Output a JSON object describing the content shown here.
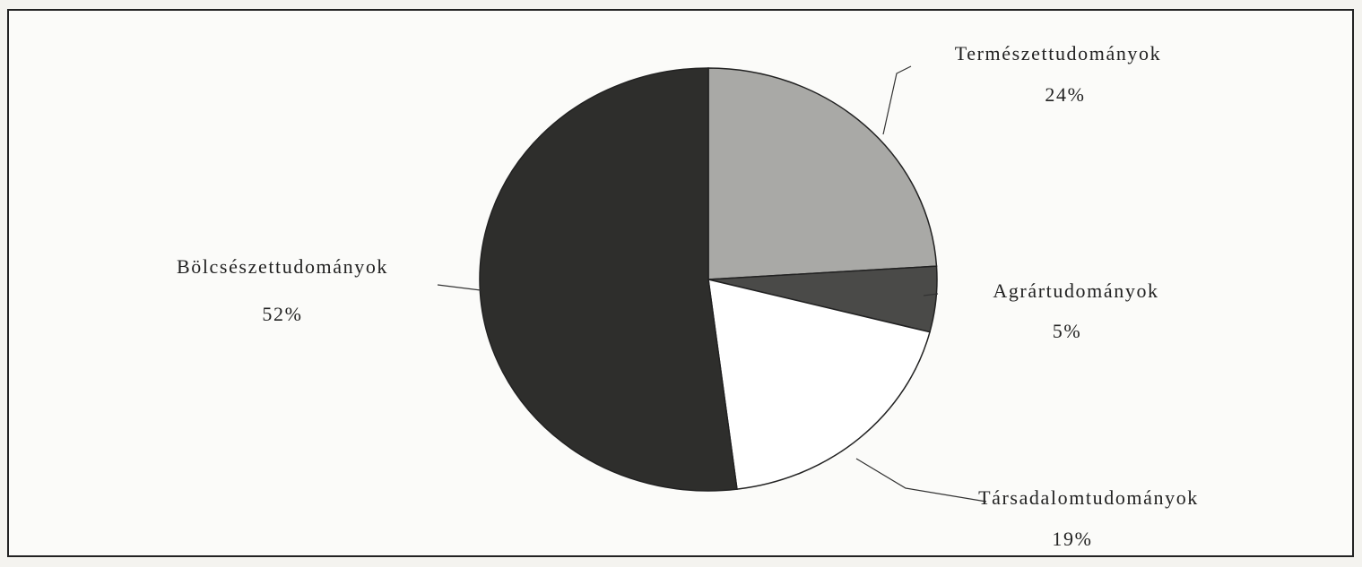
{
  "chart_data": {
    "type": "pie",
    "categories": [
      "Természettudományok",
      "Agrártudományok",
      "Társadalomtudományok",
      "Bölcsészettudományok"
    ],
    "values": [
      24,
      5,
      19,
      52
    ],
    "value_labels": [
      "24%",
      "5%",
      "19%",
      "52%"
    ],
    "colors": [
      "#a9a9a6",
      "#4a4a48",
      "#ffffff",
      "#2e2e2c"
    ]
  }
}
